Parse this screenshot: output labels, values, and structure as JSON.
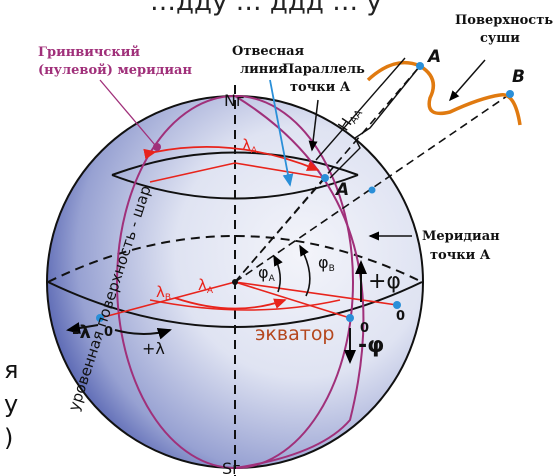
{
  "labels": {
    "top_cut": "…дду … ддд … у",
    "greenwich": [
      "Гринвичский",
      "(нулевой) меридиан"
    ],
    "plumb": [
      "Отвесная",
      "линия"
    ],
    "parallel": [
      "Параллель",
      "точки А"
    ],
    "surface": [
      "Поверхность",
      "суши"
    ],
    "meridian_a": [
      "Меридиан",
      "точки А"
    ],
    "n_pole": "Nг",
    "s_pole": "Sг",
    "point_a_top": "A",
    "point_b": "B",
    "point_a": "A",
    "h_aa": "H",
    "h_aa_sub": "AA",
    "lambda_a_top": "λ",
    "lambda_a_top_sub": "A",
    "lambda_b": "λ",
    "lambda_b_sub": "B",
    "lambda_a_eq": "λ",
    "lambda_a_eq_sub": "A",
    "phi_a": "φ",
    "phi_a_sub": "A",
    "phi_b": "φ",
    "phi_b_sub": "B",
    "plus_phi": "+φ",
    "minus_phi": "-φ",
    "minus_lambda": "-λ",
    "plus_lambda": "+λ",
    "zero_left": "0",
    "zero_right1": "0",
    "zero_right2": "0",
    "equator": "экватор",
    "level_surface": "уровенная поверхность - шар",
    "left_frag1": "я",
    "left_frag2": "у",
    "left_frag3": ")"
  },
  "colors": {
    "greenwich": "#a0307a",
    "meridian": "#a0307a",
    "red": "#e8241c",
    "orange": "#e07a10",
    "equator": "#b5471e",
    "blue": "#2a8fd8",
    "sphere_light": "#eef0f8",
    "sphere_dark": "#3a4aa0"
  }
}
